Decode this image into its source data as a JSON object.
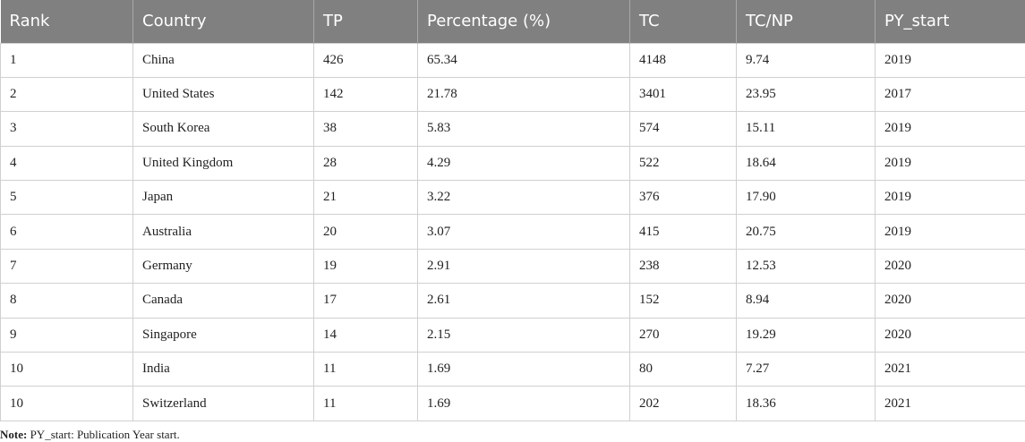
{
  "table": {
    "header": [
      "Rank",
      "Country",
      "TP",
      "Percentage (%)",
      "TC",
      "TC/NP",
      "PY_start"
    ],
    "rows": [
      [
        "1",
        "China",
        "426",
        "65.34",
        "4148",
        "9.74",
        "2019"
      ],
      [
        "2",
        "United States",
        "142",
        "21.78",
        "3401",
        "23.95",
        "2017"
      ],
      [
        "3",
        "South Korea",
        "38",
        "5.83",
        "574",
        "15.11",
        "2019"
      ],
      [
        "4",
        "United Kingdom",
        "28",
        "4.29",
        "522",
        "18.64",
        "2019"
      ],
      [
        "5",
        "Japan",
        "21",
        "3.22",
        "376",
        "17.90",
        "2019"
      ],
      [
        "6",
        "Australia",
        "20",
        "3.07",
        "415",
        "20.75",
        "2019"
      ],
      [
        "7",
        "Germany",
        "19",
        "2.91",
        "238",
        "12.53",
        "2020"
      ],
      [
        "8",
        "Canada",
        "17",
        "2.61",
        "152",
        "8.94",
        "2020"
      ],
      [
        "9",
        "Singapore",
        "14",
        "2.15",
        "270",
        "19.29",
        "2020"
      ],
      [
        "10",
        "India",
        "11",
        "1.69",
        "80",
        "7.27",
        "2021"
      ],
      [
        "10",
        "Switzerland",
        "11",
        "1.69",
        "202",
        "18.36",
        "2021"
      ]
    ]
  },
  "note": {
    "label": "Note:",
    "text": "PY_start: Publication Year start."
  }
}
